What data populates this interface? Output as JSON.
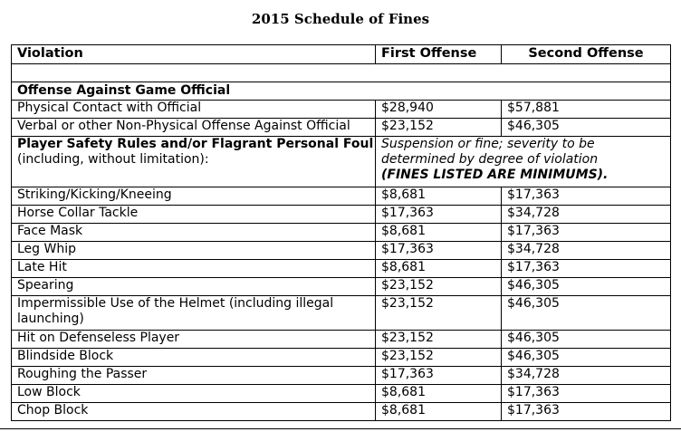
{
  "title": "2015 Schedule of Fines",
  "headers": {
    "violation": "Violation",
    "first": "First Offense",
    "second": "Second Offense"
  },
  "section_official": {
    "label": "Offense Against Game Official",
    "rows": [
      {
        "violation": "Physical Contact with Official",
        "first": "$28,940",
        "second": "$57,881"
      },
      {
        "violation": "Verbal or other Non-Physical Offense Against Official",
        "first": "$23,152",
        "second": "$46,305"
      }
    ]
  },
  "section_safety": {
    "label_bold": "Player Safety Rules and/or Flagrant Personal Foul",
    "label_rest": " (including, without limitation):",
    "note_italic": "Suspension or fine; severity to be determined by degree of violation",
    "note_bold": "(FINES LISTED ARE MINIMUMS)."
  },
  "rows": [
    {
      "violation": "Striking/Kicking/Kneeing",
      "first": "$8,681",
      "second": "$17,363"
    },
    {
      "violation": "Horse Collar Tackle",
      "first": "$17,363",
      "second": "$34,728"
    },
    {
      "violation": "Face Mask",
      "first": "$8,681",
      "second": "$17,363"
    },
    {
      "violation": "Leg Whip",
      "first": "$17,363",
      "second": "$34,728"
    },
    {
      "violation": "Late Hit",
      "first": "$8,681",
      "second": "$17,363"
    },
    {
      "violation": "Spearing",
      "first": "$23,152",
      "second": "$46,305"
    },
    {
      "violation": "Impermissible Use of the Helmet (including illegal launching)",
      "first": "$23,152",
      "second": "$46,305"
    },
    {
      "violation": "Hit on Defenseless Player",
      "first": "$23,152",
      "second": "$46,305"
    },
    {
      "violation": "Blindside Block",
      "first": "$23,152",
      "second": "$46,305"
    },
    {
      "violation": "Roughing the Passer",
      "first": "$17,363",
      "second": "$34,728"
    },
    {
      "violation": "Low Block",
      "first": "$8,681",
      "second": "$17,363"
    },
    {
      "violation": "Chop Block",
      "first": "$8,681",
      "second": "$17,363"
    }
  ]
}
